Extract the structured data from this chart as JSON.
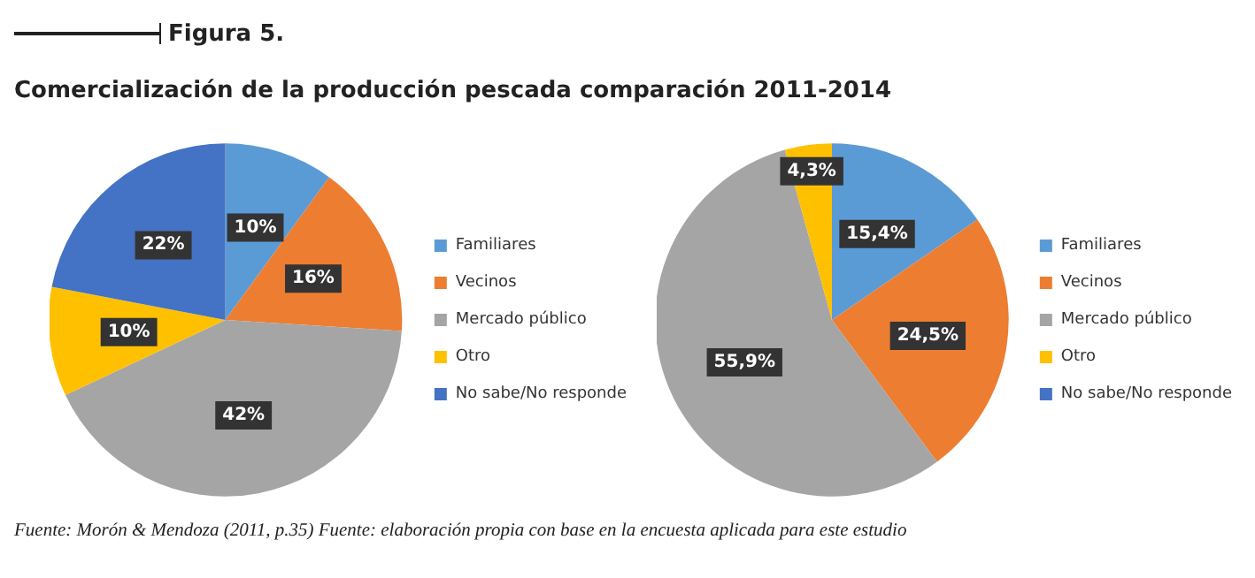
{
  "chart_data": [
    {
      "type": "pie",
      "title": "Figura 5.",
      "subtitle": "Comercialización de la producción pescada comparación 2011-2014",
      "categories": [
        "Familiares",
        "Vecinos",
        "Mercado público",
        "Otro",
        "No sabe/No responde"
      ],
      "values": [
        10,
        16,
        42,
        10,
        22
      ],
      "value_labels": [
        "10%",
        "16%",
        "42%",
        "10%",
        "22%"
      ],
      "colors": [
        "#5b9bd5",
        "#ed7d31",
        "#a5a5a5",
        "#ffc000",
        "#4472c4"
      ],
      "legend": "right",
      "annotations": [
        "Fuente: Morón & Mendoza (2011, p.35) Fuente: elaboración propia con base en la encuesta aplicada para este estudio"
      ]
    },
    {
      "type": "pie",
      "categories": [
        "Familiares",
        "Vecinos",
        "Mercado público",
        "Otro",
        "No sabe/No responde"
      ],
      "values": [
        15.4,
        24.5,
        55.9,
        4.3,
        0
      ],
      "value_labels": [
        "15,4%",
        "24,5%",
        "55,9%",
        "4,3%",
        null
      ],
      "colors": [
        "#5b9bd5",
        "#ed7d31",
        "#a5a5a5",
        "#ffc000",
        "#4472c4"
      ],
      "legend": "right"
    }
  ]
}
